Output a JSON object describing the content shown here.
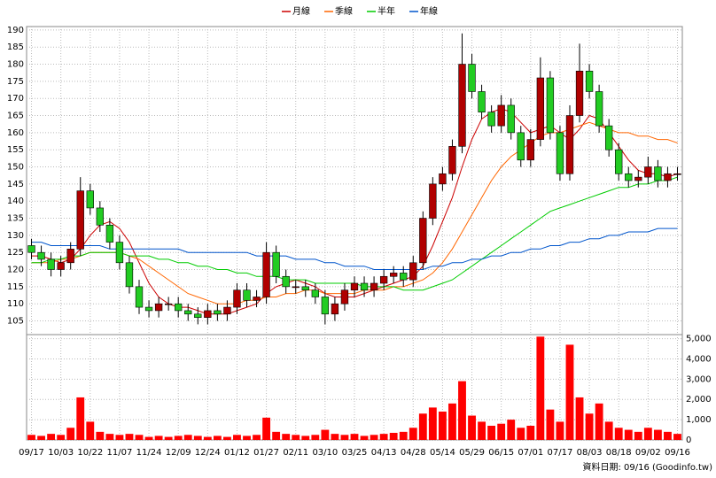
{
  "chart_data": [
    {
      "type": "candlestick",
      "categories": [
        "09/17",
        null,
        null,
        "10/03",
        null,
        null,
        "10/22",
        null,
        null,
        "11/07",
        null,
        null,
        "11/24",
        null,
        null,
        "12/09",
        null,
        null,
        "12/24",
        null,
        null,
        "01/12",
        null,
        null,
        "01/27",
        null,
        null,
        "02/11",
        null,
        null,
        "03/10",
        null,
        null,
        "03/25",
        null,
        null,
        "04/13",
        null,
        null,
        "04/28",
        null,
        null,
        "05/14",
        null,
        null,
        "05/29",
        null,
        null,
        "06/15",
        null,
        null,
        "07/01",
        null,
        null,
        "07/17",
        null,
        null,
        "08/03",
        null,
        null,
        "08/18",
        null,
        null,
        "09/02",
        null,
        null,
        "09/16"
      ],
      "open": [
        127,
        125,
        123,
        120,
        122,
        126,
        143,
        138,
        133,
        128,
        122,
        115,
        109,
        108,
        110,
        110,
        108,
        107,
        106,
        108,
        107,
        109,
        114,
        111,
        112,
        125,
        118,
        115,
        115,
        114,
        112,
        107,
        110,
        114,
        116,
        114,
        116,
        118,
        119,
        117,
        122,
        135,
        145,
        148,
        156,
        180,
        172,
        166,
        162,
        168,
        160,
        152,
        158,
        176,
        160,
        148,
        165,
        178,
        172,
        162,
        155,
        148,
        146,
        147,
        150,
        146,
        148
      ],
      "high": [
        129,
        127,
        125,
        124,
        128,
        147,
        145,
        140,
        135,
        130,
        124,
        117,
        111,
        112,
        112,
        112,
        110,
        109,
        110,
        110,
        111,
        116,
        116,
        114,
        128,
        127,
        120,
        117,
        117,
        116,
        114,
        112,
        116,
        118,
        118,
        118,
        120,
        121,
        121,
        124,
        137,
        147,
        150,
        158,
        189,
        183,
        174,
        168,
        171,
        170,
        162,
        161,
        182,
        178,
        162,
        168,
        186,
        180,
        174,
        164,
        157,
        150,
        149,
        153,
        152,
        150,
        150
      ],
      "low": [
        123,
        121,
        118,
        118,
        120,
        124,
        136,
        131,
        126,
        120,
        113,
        107,
        106,
        106,
        108,
        106,
        105,
        104,
        104,
        105,
        105,
        107,
        109,
        109,
        110,
        116,
        113,
        113,
        112,
        110,
        104,
        105,
        108,
        112,
        112,
        112,
        114,
        116,
        115,
        115,
        120,
        133,
        143,
        146,
        154,
        170,
        164,
        160,
        160,
        158,
        150,
        150,
        156,
        158,
        146,
        146,
        163,
        170,
        160,
        153,
        146,
        144,
        144,
        145,
        144,
        144,
        146
      ],
      "close": [
        125,
        123,
        120,
        122,
        126,
        143,
        138,
        133,
        128,
        122,
        115,
        109,
        108,
        110,
        110,
        108,
        107,
        106,
        108,
        107,
        109,
        114,
        111,
        112,
        125,
        118,
        115,
        115,
        114,
        112,
        107,
        110,
        114,
        116,
        114,
        116,
        118,
        119,
        117,
        122,
        135,
        145,
        148,
        156,
        180,
        172,
        166,
        162,
        168,
        160,
        152,
        158,
        176,
        160,
        148,
        165,
        178,
        172,
        162,
        155,
        148,
        146,
        147,
        150,
        146,
        148,
        148
      ],
      "up_color": "#b00000",
      "down_color": "#22cc22",
      "series": [
        {
          "name": "月線",
          "color": "#cc0000",
          "values": [
            124,
            124,
            123,
            122,
            123,
            126,
            130,
            133,
            134,
            132,
            128,
            122,
            116,
            112,
            110,
            109,
            109,
            108,
            107,
            107,
            107,
            108,
            109,
            110,
            113,
            115,
            116,
            117,
            116,
            115,
            113,
            112,
            112,
            112,
            113,
            114,
            115,
            116,
            117,
            118,
            121,
            127,
            134,
            141,
            150,
            158,
            164,
            166,
            167,
            166,
            163,
            160,
            161,
            162,
            160,
            158,
            161,
            165,
            164,
            160,
            156,
            152,
            149,
            148,
            148,
            147,
            148
          ]
        },
        {
          "name": "季線",
          "color": "#ff6600",
          "values": [
            122,
            122,
            122,
            123,
            123,
            124,
            125,
            125,
            125,
            125,
            124,
            123,
            121,
            119,
            117,
            115,
            113,
            112,
            111,
            110,
            110,
            110,
            111,
            111,
            112,
            112,
            113,
            113,
            114,
            114,
            113,
            113,
            113,
            113,
            114,
            114,
            114,
            115,
            115,
            116,
            117,
            119,
            122,
            126,
            131,
            136,
            141,
            146,
            150,
            153,
            155,
            157,
            159,
            160,
            160,
            161,
            162,
            163,
            162,
            161,
            160,
            160,
            159,
            159,
            158,
            158,
            157
          ]
        },
        {
          "name": "半年",
          "color": "#00cc00",
          "values": [
            122,
            122,
            123,
            123,
            124,
            124,
            125,
            125,
            125,
            125,
            124,
            124,
            124,
            123,
            123,
            122,
            122,
            121,
            121,
            120,
            120,
            119,
            119,
            118,
            118,
            118,
            117,
            117,
            117,
            116,
            116,
            116,
            116,
            116,
            115,
            115,
            115,
            115,
            114,
            114,
            114,
            115,
            116,
            117,
            119,
            121,
            123,
            125,
            127,
            129,
            131,
            133,
            135,
            137,
            138,
            139,
            140,
            141,
            142,
            143,
            144,
            144,
            145,
            145,
            146,
            146,
            147
          ]
        },
        {
          "name": "年線",
          "color": "#0055cc",
          "values": [
            128,
            128,
            127,
            127,
            127,
            127,
            127,
            127,
            126,
            126,
            126,
            126,
            126,
            126,
            126,
            126,
            125,
            125,
            125,
            125,
            125,
            125,
            125,
            124,
            124,
            124,
            124,
            123,
            123,
            123,
            122,
            122,
            121,
            121,
            121,
            120,
            120,
            120,
            120,
            120,
            120,
            121,
            121,
            122,
            122,
            123,
            123,
            124,
            124,
            125,
            125,
            126,
            126,
            127,
            127,
            128,
            128,
            129,
            129,
            130,
            130,
            131,
            131,
            131,
            132,
            132,
            132
          ]
        }
      ],
      "ylim": [
        101,
        191
      ],
      "yticks": [
        105,
        110,
        115,
        120,
        125,
        130,
        135,
        140,
        145,
        150,
        155,
        160,
        165,
        170,
        175,
        180,
        185,
        190
      ],
      "grid": true
    },
    {
      "type": "bar",
      "values": [
        250,
        200,
        300,
        250,
        600,
        2100,
        900,
        400,
        300,
        250,
        300,
        250,
        150,
        200,
        150,
        200,
        250,
        200,
        150,
        200,
        150,
        250,
        200,
        250,
        1100,
        400,
        300,
        250,
        200,
        250,
        500,
        300,
        250,
        300,
        200,
        250,
        300,
        350,
        400,
        600,
        1300,
        1600,
        1400,
        1800,
        2900,
        1200,
        900,
        700,
        800,
        1000,
        600,
        700,
        5100,
        1500,
        900,
        4700,
        2100,
        1300,
        1800,
        900,
        600,
        500,
        400,
        600,
        500,
        400,
        300
      ],
      "color": "#ff0000",
      "ylim": [
        0,
        5200
      ],
      "yticks": [
        0,
        {
          "value": 1000,
          "label": "1,000"
        },
        {
          "value": 2000,
          "label": "2,000"
        },
        {
          "value": 3000,
          "label": "3,000"
        },
        {
          "value": 4000,
          "label": "4,000"
        },
        {
          "value": 5000,
          "label": "5,000"
        }
      ],
      "grid": true
    }
  ],
  "footnote": "資料日期: 09/16 (Goodinfo.tw)"
}
